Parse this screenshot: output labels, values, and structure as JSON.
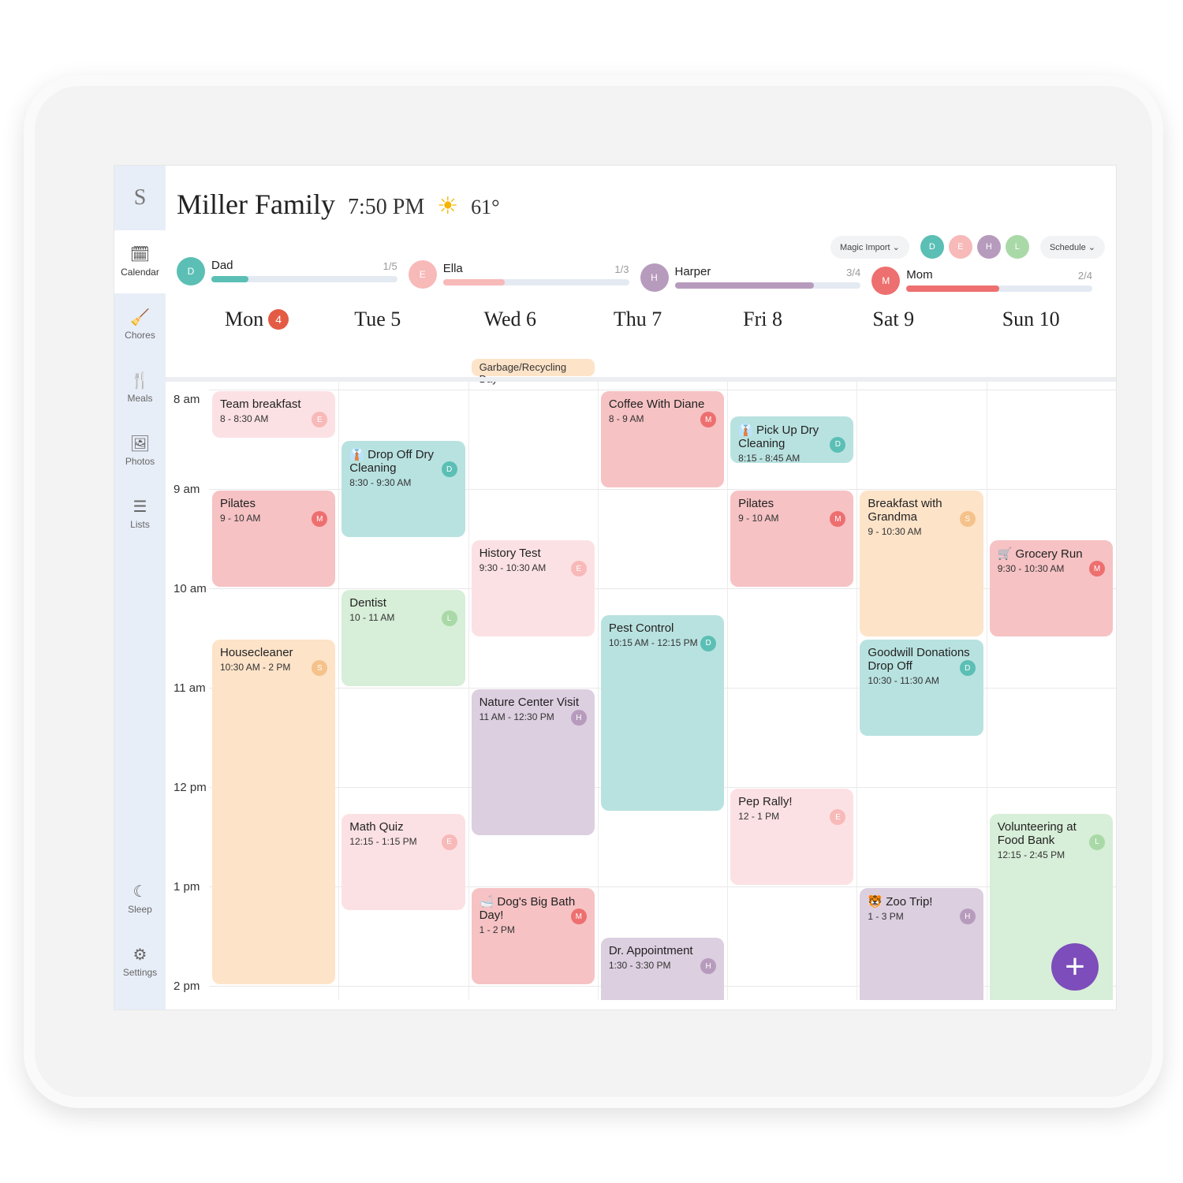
{
  "app": {
    "logo": "S",
    "title": "Miller Family",
    "time": "7:50 PM",
    "weather_icon": "sun-icon",
    "temperature": "61°"
  },
  "sidebar": {
    "items": [
      {
        "label": "Calendar",
        "icon": "calendar-icon",
        "glyph": "🗓",
        "active": true
      },
      {
        "label": "Chores",
        "icon": "broom-icon",
        "glyph": "🧹"
      },
      {
        "label": "Meals",
        "icon": "utensils-icon",
        "glyph": "🍴"
      },
      {
        "label": "Photos",
        "icon": "image-icon",
        "glyph": "🖼"
      },
      {
        "label": "Lists",
        "icon": "list-icon",
        "glyph": "☰"
      }
    ],
    "bottom": [
      {
        "label": "Sleep",
        "icon": "moon-icon",
        "glyph": "☾"
      },
      {
        "label": "Settings",
        "icon": "gear-icon",
        "glyph": "⚙"
      }
    ]
  },
  "toolbar": {
    "magic_import": "Magic Import ⌄",
    "schedule": "Schedule ⌄",
    "filters": [
      "D",
      "E",
      "H",
      "L"
    ]
  },
  "members": {
    "D": {
      "name": "Dad",
      "color": "#5bbfb5",
      "light": "#b8e2e0"
    },
    "E": {
      "name": "Ella",
      "color": "#f8b9b9",
      "light": "#fce1e4"
    },
    "H": {
      "name": "Harper",
      "color": "#b79bbd",
      "light": "#dccfe0"
    },
    "L": {
      "name": "L",
      "color": "#a9d9a7",
      "light": "#d7eed8"
    },
    "M": {
      "name": "Mom",
      "color": "#ee6f6f",
      "light": "#f6c2c4"
    },
    "S": {
      "name": "S",
      "color": "#f4c28a",
      "light": "#fde3c8"
    }
  },
  "progress": [
    {
      "letter": "D",
      "name": "Dad",
      "fraction": "1/5",
      "done": 1,
      "total": 5
    },
    {
      "letter": "E",
      "name": "Ella",
      "fraction": "1/3",
      "done": 1,
      "total": 3
    },
    {
      "letter": "H",
      "name": "Harper",
      "fraction": "3/4",
      "done": 3,
      "total": 4
    },
    {
      "letter": "M",
      "name": "Mom",
      "fraction": "2/4",
      "done": 2,
      "total": 4
    }
  ],
  "days": [
    {
      "label": "Mon",
      "date": "4",
      "today": true
    },
    {
      "label": "Tue 5"
    },
    {
      "label": "Wed 6"
    },
    {
      "label": "Thu 7"
    },
    {
      "label": "Fri 8"
    },
    {
      "label": "Sat 9"
    },
    {
      "label": "Sun 10"
    }
  ],
  "all_day": [
    {
      "day": 2,
      "title": "Garbage/Recycling Day"
    }
  ],
  "hours": [
    "8 am",
    "9 am",
    "10 am",
    "11 am",
    "12 pm",
    "1 pm",
    "2 pm"
  ],
  "events": [
    {
      "day": 0,
      "title": "Team breakfast",
      "time": "8 - 8:30 AM",
      "who": "E"
    },
    {
      "day": 0,
      "title": "Pilates",
      "time": "9 - 10 AM",
      "who": "M"
    },
    {
      "day": 0,
      "title": "Housecleaner",
      "time": "10:30 AM - 2 PM",
      "who": "S"
    },
    {
      "day": 1,
      "title": "👔 Drop Off Dry Cleaning",
      "time": "8:30 - 9:30 AM",
      "who": "D"
    },
    {
      "day": 1,
      "title": "Dentist",
      "time": "10 - 11 AM",
      "who": "L"
    },
    {
      "day": 1,
      "title": "Math Quiz",
      "time": "12:15 - 1:15 PM",
      "who": "E"
    },
    {
      "day": 2,
      "title": "History Test",
      "time": "9:30 - 10:30 AM",
      "who": "E"
    },
    {
      "day": 2,
      "title": "Nature Center Visit",
      "time": "11 AM - 12:30 PM",
      "who": "H"
    },
    {
      "day": 2,
      "title": "🛁 Dog's Big Bath Day!",
      "time": "1 - 2 PM",
      "who": "M"
    },
    {
      "day": 3,
      "title": "Coffee With Diane",
      "time": "8 - 9 AM",
      "who": "M"
    },
    {
      "day": 3,
      "title": "Pest Control",
      "time": "10:15 AM - 12:15 PM",
      "who": "D"
    },
    {
      "day": 3,
      "title": "Dr. Appointment",
      "time": "1:30 - 3:30 PM",
      "who": "H"
    },
    {
      "day": 4,
      "title": "👔 Pick Up Dry Cleaning",
      "time": "8:15 - 8:45 AM",
      "who": "D"
    },
    {
      "day": 4,
      "title": "Pilates",
      "time": "9 - 10 AM",
      "who": "M"
    },
    {
      "day": 4,
      "title": "Pep Rally!",
      "time": "12 - 1 PM",
      "who": "E"
    },
    {
      "day": 5,
      "title": "Breakfast with Grandma",
      "time": "9 - 10:30 AM",
      "who": "S"
    },
    {
      "day": 5,
      "title": "Goodwill Donations Drop Off",
      "time": "10:30 - 11:30 AM",
      "who": "D"
    },
    {
      "day": 5,
      "title": "🐯 Zoo Trip!",
      "time": "1 - 3 PM",
      "who": "H"
    },
    {
      "day": 6,
      "title": "🛒 Grocery Run",
      "time": "9:30 - 10:30 AM",
      "who": "M"
    },
    {
      "day": 6,
      "title": "Volunteering at Food Bank",
      "time": "12:15 - 2:45 PM",
      "who": "L"
    }
  ],
  "fab": "+"
}
